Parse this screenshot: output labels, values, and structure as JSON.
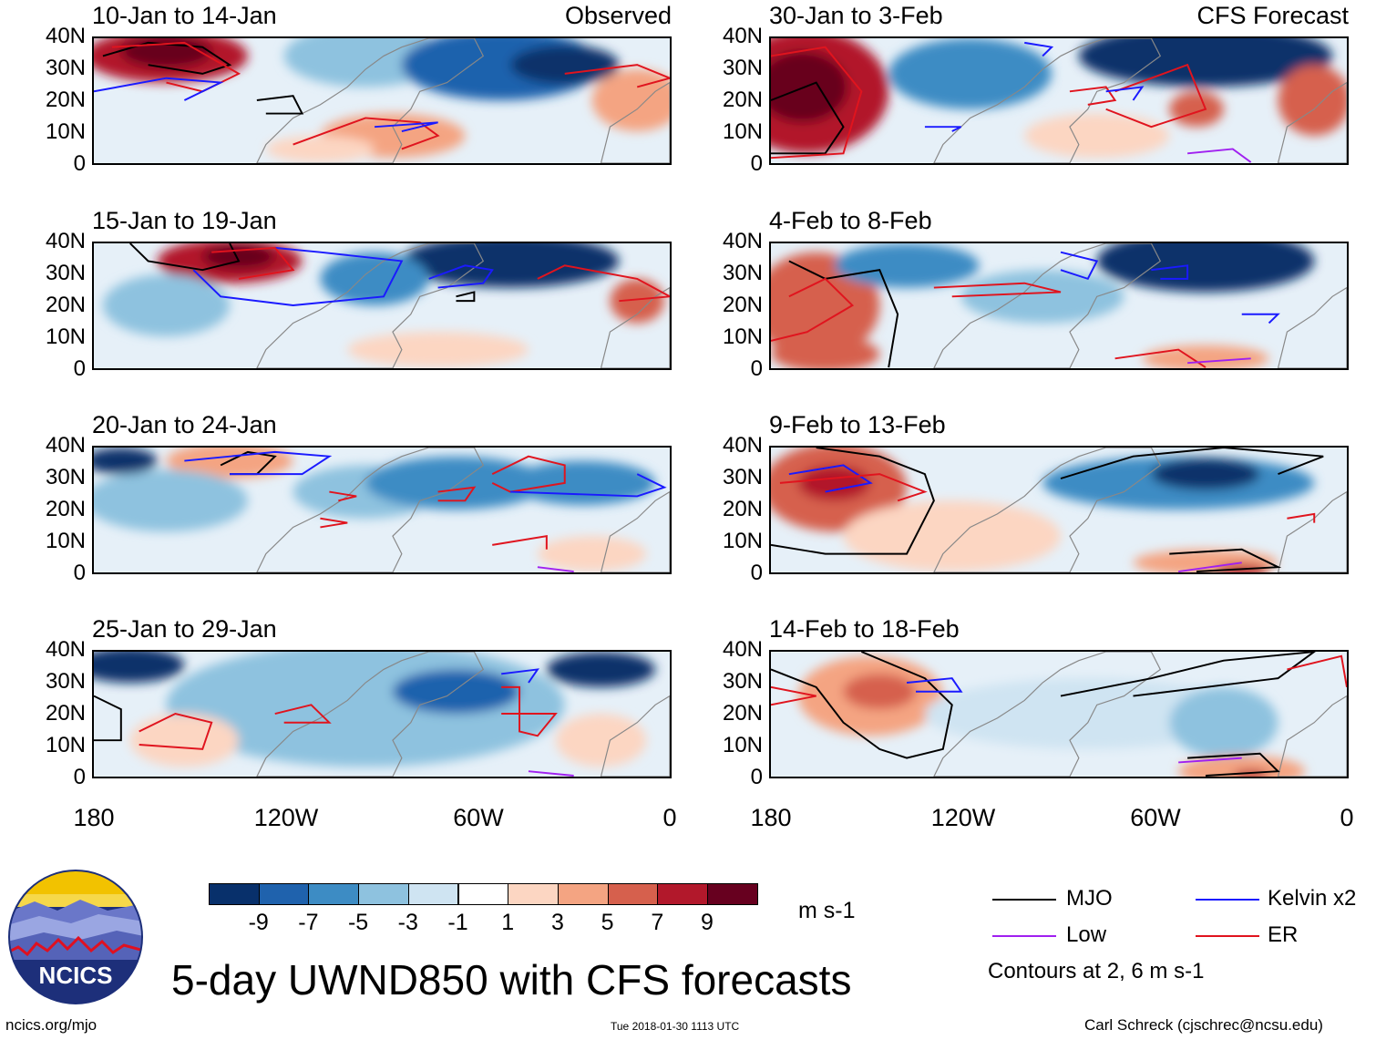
{
  "colors": {
    "mjo": "#000000",
    "low": "#a020f0",
    "kelvin": "#1a1aff",
    "er": "#e0141e",
    "land": "#888888"
  },
  "axes": {
    "lat_ticks": [
      "40N",
      "30N",
      "20N",
      "10N",
      "0"
    ],
    "lon_ticks": [
      "180",
      "120W",
      "60W",
      "0"
    ]
  },
  "panels": [
    {
      "title": "10-Jan to 14-Jan",
      "tag": "Observed"
    },
    {
      "title": "30-Jan to 3-Feb",
      "tag": "CFS Forecast"
    },
    {
      "title": "15-Jan to 19-Jan",
      "tag": ""
    },
    {
      "title": "4-Feb to 8-Feb",
      "tag": ""
    },
    {
      "title": "20-Jan to 24-Jan",
      "tag": ""
    },
    {
      "title": "9-Feb to 13-Feb",
      "tag": ""
    },
    {
      "title": "25-Jan to 29-Jan",
      "tag": ""
    },
    {
      "title": "14-Feb to 18-Feb",
      "tag": ""
    }
  ],
  "colorbar": {
    "unit": "m s-1",
    "tick_labels": [
      "-9",
      "-7",
      "-5",
      "-3",
      "-1",
      "1",
      "3",
      "5",
      "7",
      "9"
    ],
    "colors": [
      "#08306b",
      "#1f62ad",
      "#3d8cc4",
      "#8ec2df",
      "#cfe4f2",
      "#ffffff",
      "#fcd6c2",
      "#f4a482",
      "#d6604d",
      "#b2182b",
      "#67001f"
    ]
  },
  "legend": {
    "items": [
      {
        "label": "MJO",
        "color_key": "mjo"
      },
      {
        "label": "Kelvin x2",
        "color_key": "kelvin"
      },
      {
        "label": "Low",
        "color_key": "low"
      },
      {
        "label": "ER",
        "color_key": "er"
      }
    ],
    "note": "Contours at 2, 6 m s-1"
  },
  "logo": {
    "text": "NCICS"
  },
  "main_title": "5-day UWND850 with CFS forecasts",
  "footer": {
    "left": "ncics.org/mjo",
    "center": "Tue 2018-01-30 1113 UTC",
    "right": "Carl Schreck (cjschrec@ncsu.edu)"
  }
}
